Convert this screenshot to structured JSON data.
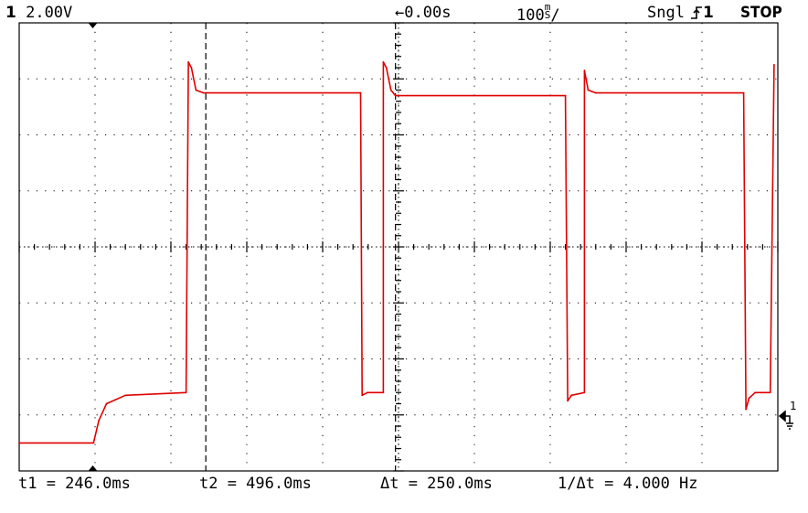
{
  "header": {
    "channel": "1",
    "volts_div": "2.00V",
    "time_ref_arrow": "←",
    "time_offset": "0.00s",
    "time_div_num": "100",
    "time_div_top": "m",
    "time_div_bot": "S",
    "time_div_slash": "/",
    "mode": "Sngl",
    "trigger_icon": "trigger-edge-icon",
    "trigger_channel": "1",
    "run_state": "STOP"
  },
  "measurements": {
    "t1": "t1 = 246.0ms",
    "t2": "t2 = 496.0ms",
    "dt": "Δt = 250.0ms",
    "inv_dt": "1/Δt = 4.000 Hz"
  },
  "ground_marker": {
    "label": "1",
    "icon": "ground-icon"
  },
  "colors": {
    "trace": "#e00000",
    "grid": "#000000",
    "background": "#ffffff"
  },
  "chart_data": {
    "type": "line",
    "title": "",
    "xlabel": "",
    "ylabel": "",
    "x_unit": "ms",
    "y_unit": "V",
    "x_divisions": 10,
    "y_divisions": 8,
    "volts_per_div": 2.0,
    "ms_per_div": 100,
    "xlim": [
      0,
      1000
    ],
    "ylim": [
      -1.0,
      15.0
    ],
    "grid": true,
    "cursors_ms": [
      246,
      496
    ],
    "series": [
      {
        "x": [
          0,
          98,
          105,
          115,
          140,
          220,
          223,
          227,
          233,
          243,
          450,
          452,
          459,
          480,
          480,
          484,
          490,
          496,
          720,
          723,
          728,
          745,
          745,
          750,
          760,
          955,
          958,
          962,
          970,
          990,
          995
        ],
        "y": [
          0.0,
          0.0,
          0.8,
          1.4,
          1.7,
          1.8,
          13.6,
          13.4,
          12.6,
          12.5,
          12.5,
          1.7,
          1.8,
          1.8,
          13.6,
          13.4,
          12.6,
          12.4,
          12.4,
          1.5,
          1.7,
          1.8,
          13.3,
          12.6,
          12.5,
          12.5,
          1.2,
          1.6,
          1.8,
          1.8,
          13.5
        ]
      }
    ]
  }
}
